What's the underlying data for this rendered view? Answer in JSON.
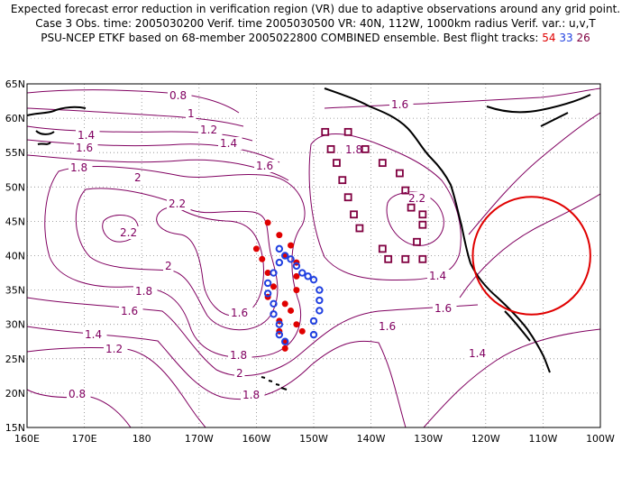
{
  "title": {
    "line1": "Expected forecast error reduction in verification region (VR) due to adaptive observations around any grid point.",
    "line2": "Case 3   Obs. time: 2005030200   Verif. time 2005030500   VR: 40N, 112W, 1000km radius   Verif. var.: u,v,T",
    "line3_prefix": "PSU-NCEP ETKF based on 68-member 2005022800 COMBINED ensemble.   Best flight tracks:",
    "track_red": "54",
    "track_blue": "33",
    "track_purple": "26"
  },
  "axes": {
    "lon_labels": [
      "160E",
      "170E",
      "180",
      "170W",
      "160W",
      "150W",
      "140W",
      "130W",
      "120W",
      "110W",
      "100W"
    ],
    "lat_labels": [
      "15N",
      "20N",
      "25N",
      "30N",
      "35N",
      "40N",
      "45N",
      "50N",
      "55N",
      "60N",
      "65N"
    ],
    "lon_range": [
      160,
      260
    ],
    "lat_range": [
      15,
      65
    ]
  },
  "contour_labels": [
    "0.8",
    "1",
    "1.2",
    "1.4",
    "1.6",
    "1.8",
    "2",
    "2.2",
    "2.2",
    "2",
    "1.8",
    "1.6",
    "1.4",
    "1.2",
    "0.8",
    "1.6",
    "1.8",
    "2",
    "1.8",
    "1.6",
    "1.4",
    "1.6",
    "1.4",
    "1.6",
    "1.8",
    "2.2",
    "1.6",
    "1.4"
  ],
  "verification_region": {
    "center_lat": 40,
    "center_lon_w": 112,
    "radius_km": 1000
  },
  "colors": {
    "contour": "#800060",
    "coast": "#000000",
    "vr_circle": "#e00000",
    "track_red": "#e00000",
    "track_blue": "#2040e0",
    "track_purple": "#800040",
    "grid": "#808080"
  },
  "tracks": {
    "red": [
      [
        202,
        44.8
      ],
      [
        204,
        43
      ],
      [
        200,
        41
      ],
      [
        206,
        41.5
      ],
      [
        205,
        40
      ],
      [
        201,
        39.5
      ],
      [
        207,
        39
      ],
      [
        202,
        37.5
      ],
      [
        207,
        37
      ],
      [
        203,
        35.5
      ],
      [
        207,
        35
      ],
      [
        202,
        34
      ],
      [
        205,
        33
      ],
      [
        206,
        32
      ],
      [
        204,
        30.5
      ],
      [
        207,
        30
      ],
      [
        208,
        29
      ],
      [
        204,
        29
      ],
      [
        205,
        27.5
      ],
      [
        205,
        26.5
      ]
    ],
    "blue": [
      [
        204,
        41
      ],
      [
        205,
        40
      ],
      [
        206,
        39.5
      ],
      [
        207,
        38.5
      ],
      [
        208,
        37.5
      ],
      [
        209,
        37
      ],
      [
        210,
        36.5
      ],
      [
        211,
        35
      ],
      [
        211,
        33.5
      ],
      [
        211,
        32
      ],
      [
        210,
        30.5
      ],
      [
        210,
        28.5
      ],
      [
        204,
        39
      ],
      [
        203,
        37.5
      ],
      [
        202,
        36
      ],
      [
        202,
        34.5
      ],
      [
        203,
        33
      ],
      [
        203,
        31.5
      ],
      [
        204,
        30
      ],
      [
        204,
        28.5
      ],
      [
        205,
        27.5
      ]
    ],
    "purple": [
      [
        212,
        58
      ],
      [
        216,
        58
      ],
      [
        213,
        55.5
      ],
      [
        219,
        55.5
      ],
      [
        214,
        53.5
      ],
      [
        222,
        53.5
      ],
      [
        215,
        51
      ],
      [
        225,
        52
      ],
      [
        216,
        48.5
      ],
      [
        226,
        49.5
      ],
      [
        217,
        46
      ],
      [
        227,
        47
      ],
      [
        218,
        44
      ],
      [
        229,
        46
      ],
      [
        229,
        44.5
      ],
      [
        222,
        41
      ],
      [
        228,
        42
      ],
      [
        223,
        39.5
      ],
      [
        226,
        39.5
      ],
      [
        229,
        39.5
      ]
    ]
  }
}
